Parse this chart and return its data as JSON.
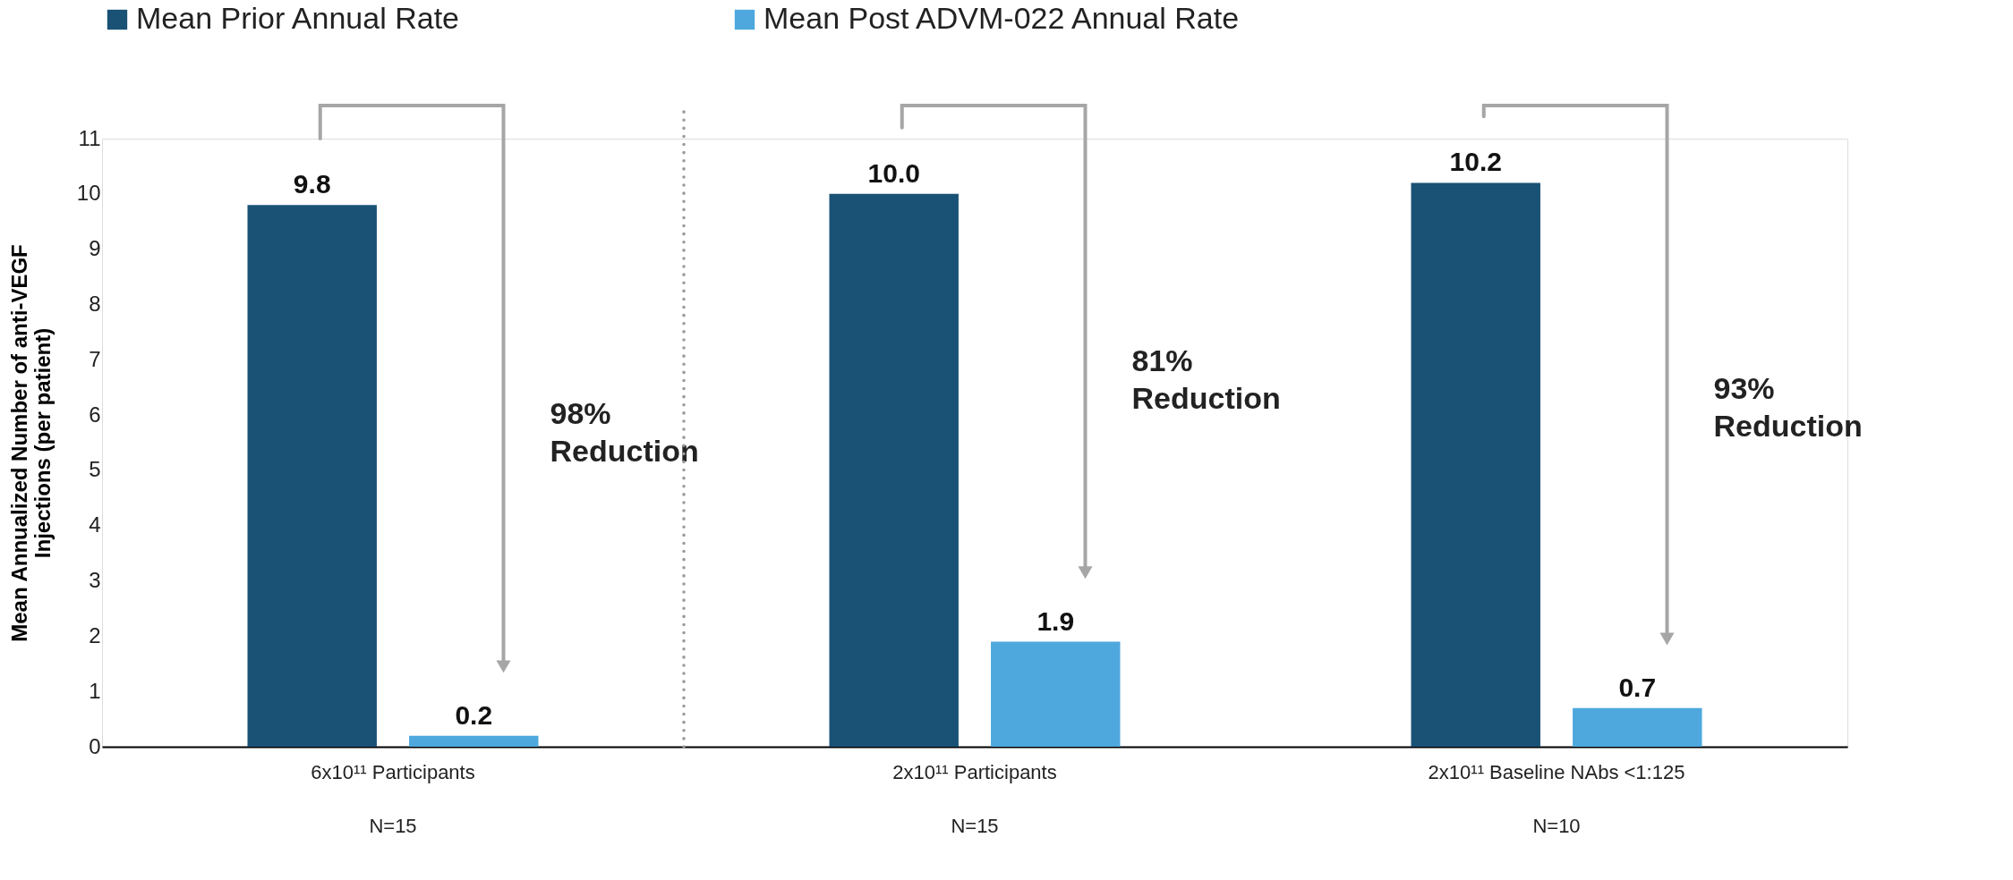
{
  "chart_data": {
    "type": "bar",
    "ylabel": "Mean Annualized Number of anti-VEGF\nInjections (per patient)",
    "categories": [
      "6x10¹¹ Participants\nN=15",
      "2x10¹¹ Participants\nN=15",
      "2x10¹¹ Baseline NAbs <1:125\nN=10"
    ],
    "series": [
      {
        "name": "Mean Prior Annual Rate",
        "color": "#1a5276",
        "values": [
          9.8,
          10.0,
          10.2
        ],
        "value_labels": [
          "9.8",
          "10.0",
          "10.2"
        ]
      },
      {
        "name": "Mean Post ADVM-022 Annual Rate",
        "color": "#4ea8de",
        "values": [
          0.2,
          1.9,
          0.7
        ],
        "value_labels": [
          "0.2",
          "1.9",
          "0.7"
        ]
      }
    ],
    "ylim": [
      0,
      11
    ],
    "yticks": [
      0,
      1,
      2,
      3,
      4,
      5,
      6,
      7,
      8,
      9,
      10,
      11
    ],
    "grid": false,
    "legend": "top",
    "annotations": [
      "98% Reduction",
      "81% Reduction",
      "93% Reduction"
    ]
  }
}
